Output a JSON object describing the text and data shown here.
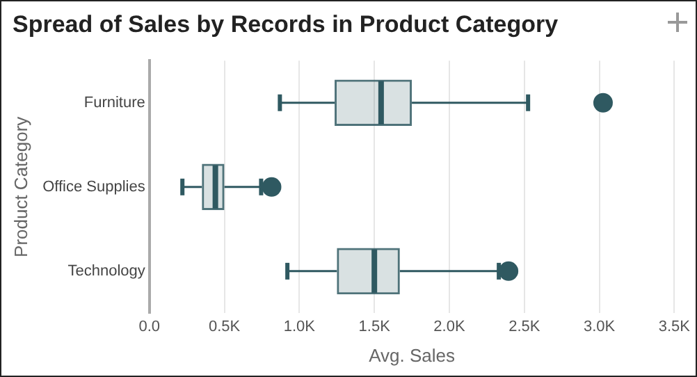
{
  "chart_data": {
    "type": "box",
    "title": "Spread of Sales by Records in Product Category",
    "xlabel": "Avg. Sales",
    "ylabel": "Product Category",
    "orientation": "horizontal",
    "categories": [
      "Furniture",
      "Office Supplies",
      "Technology"
    ],
    "color": "#2f5961",
    "grid": "x",
    "xlim": [
      0,
      3500
    ],
    "xticks": [
      {
        "value": 0,
        "label": "0.0"
      },
      {
        "value": 500,
        "label": "0.5K"
      },
      {
        "value": 1000,
        "label": "1.0K"
      },
      {
        "value": 1500,
        "label": "1.5K"
      },
      {
        "value": 2000,
        "label": "2.0K"
      },
      {
        "value": 2500,
        "label": "2.5K"
      },
      {
        "value": 3000,
        "label": "3.0K"
      },
      {
        "value": 3500,
        "label": "3.5K"
      }
    ],
    "boxes": [
      {
        "low": 870,
        "q1": 1235,
        "median": 1545,
        "q3": 1750,
        "high": 2525,
        "outliers": [
          3025
        ]
      },
      {
        "low": 220,
        "q1": 350,
        "median": 440,
        "q3": 500,
        "high": 745,
        "outliers": [
          815
        ]
      },
      {
        "low": 920,
        "q1": 1250,
        "median": 1500,
        "q3": 1670,
        "high": 2330,
        "outliers": [
          2395
        ]
      }
    ]
  }
}
